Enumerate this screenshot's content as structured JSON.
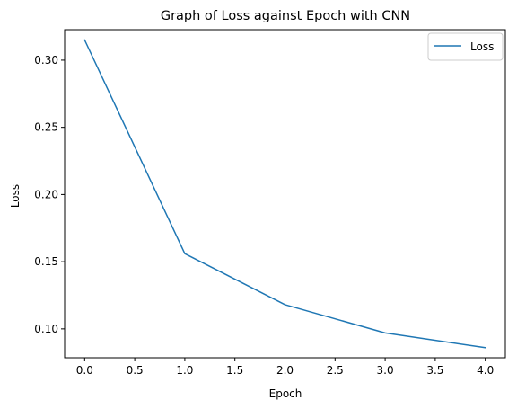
{
  "chart_data": {
    "type": "line",
    "title": "Graph of Loss against Epoch with CNN",
    "xlabel": "Epoch",
    "ylabel": "Loss",
    "xlim": [
      -0.2,
      4.2
    ],
    "ylim": [
      0.0785,
      0.3227
    ],
    "xticks": [
      0.0,
      0.5,
      1.0,
      1.5,
      2.0,
      2.5,
      3.0,
      3.5,
      4.0
    ],
    "xtick_labels": [
      "0.0",
      "0.5",
      "1.0",
      "1.5",
      "2.0",
      "2.5",
      "3.0",
      "3.5",
      "4.0"
    ],
    "yticks": [
      0.1,
      0.15,
      0.2,
      0.25,
      0.3
    ],
    "ytick_labels": [
      "0.10",
      "0.15",
      "0.20",
      "0.25",
      "0.30"
    ],
    "grid": false,
    "legend_position": "top-right",
    "series": [
      {
        "name": "Loss",
        "color": "#1f77b4",
        "x": [
          0,
          1,
          2,
          3,
          4
        ],
        "y": [
          0.315,
          0.156,
          0.118,
          0.097,
          0.086
        ]
      }
    ]
  }
}
